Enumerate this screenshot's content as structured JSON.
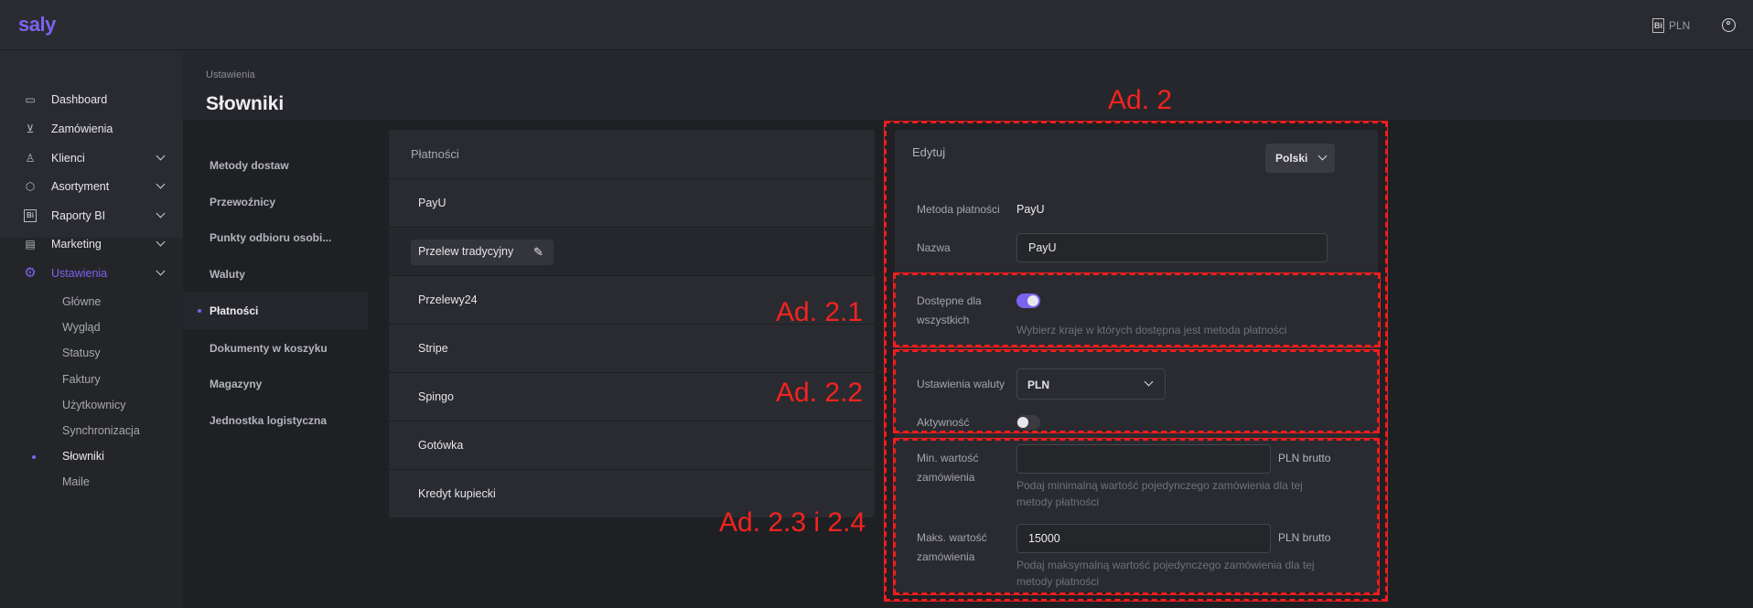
{
  "topbar": {
    "logo": "saly",
    "currency": "PLN",
    "currency_icon": "bi-icon",
    "user_icon": "user-circle-icon"
  },
  "sidebar": {
    "items": [
      {
        "label": "Dashboard",
        "icon": "monitor-icon"
      },
      {
        "label": "Zamówienia",
        "icon": "cart-icon"
      },
      {
        "label": "Klienci",
        "icon": "user-icon"
      },
      {
        "label": "Asortyment",
        "icon": "box-icon"
      },
      {
        "label": "Raporty BI",
        "icon": "bi-icon"
      },
      {
        "label": "Marketing",
        "icon": "newspaper-icon"
      },
      {
        "label": "Ustawienia",
        "icon": "gear-icon"
      }
    ],
    "sub": [
      "Główne",
      "Wygląd",
      "Statusy",
      "Faktury",
      "Użytkownicy",
      "Synchronizacja",
      "Słowniki",
      "Maile"
    ]
  },
  "page": {
    "breadcrumb": "Ustawienia",
    "title": "Słowniki"
  },
  "subnav": [
    "Metody dostaw",
    "Przewoźnicy",
    "Punkty odbioru osobi...",
    "Waluty",
    "Płatności",
    "Dokumenty w koszyku",
    "Magazyny",
    "Jednostka logistyczna"
  ],
  "list": {
    "title": "Płatności",
    "items": [
      "PayU",
      "Przelew tradycyjny",
      "Przelewy24",
      "Stripe",
      "Spingo",
      "Gotówka",
      "Kredyt kupiecki"
    ]
  },
  "edit": {
    "title": "Edytuj",
    "language": "Polski",
    "method_label": "Metoda płatności",
    "method_value": "PayU",
    "name_label": "Nazwa",
    "name_value": "PayU",
    "available_label_1": "Dostępne dla",
    "available_label_2": "wszystkich",
    "available_on": true,
    "available_help": "Wybierz kraje w których dostępna jest metoda płatności",
    "currency_label": "Ustawienia waluty",
    "currency_value": "PLN",
    "active_label": "Aktywność",
    "active_on": false,
    "min_label_1": "Min. wartość",
    "min_label_2": "zamówienia",
    "min_value": "",
    "unit": "PLN brutto",
    "min_help_1": "Podaj minimalną wartość pojedynczego zamówienia dla tej",
    "min_help_2": "metody płatności",
    "max_label_1": "Maks. wartość",
    "max_label_2": "zamówienia",
    "max_value": "15000",
    "max_help_1": "Podaj maksymalną wartość pojedynczego zamówienia dla tej",
    "max_help_2": "metody płatności"
  },
  "annotations": [
    "Ad. 2",
    "Ad. 2.1",
    "Ad. 2.2",
    "Ad. 2.3 i 2.4"
  ],
  "colors": {
    "accent": "#7b63f0",
    "annotation": "#f01d1d"
  }
}
